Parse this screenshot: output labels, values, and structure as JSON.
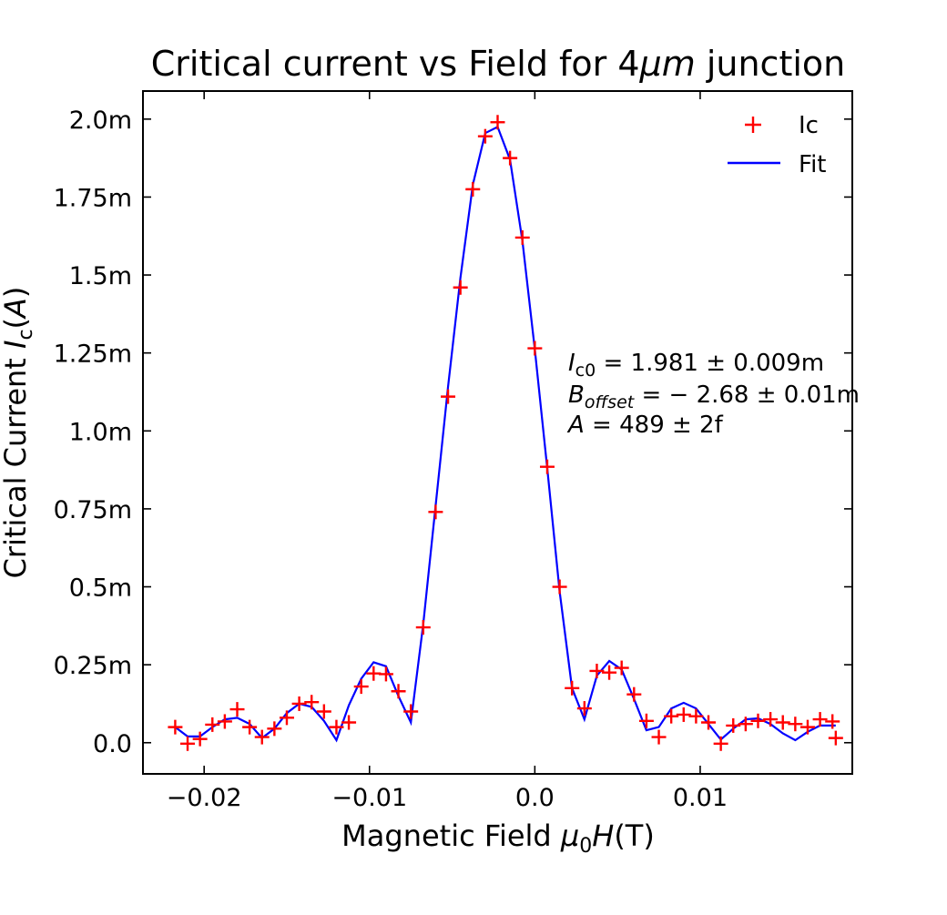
{
  "chart_data": {
    "type": "scatter",
    "title_parts": [
      "Critical current vs Field for 4",
      "μm",
      " junction"
    ],
    "xlabel_parts": [
      "Magnetic Field ",
      "μ",
      "0",
      "H",
      "(T)"
    ],
    "ylabel_parts": [
      "Critical Current ",
      "I",
      "c",
      "(",
      "A",
      ")"
    ],
    "xlim": [
      -0.0237,
      0.0192
    ],
    "ylim": [
      -0.0001,
      0.00209
    ],
    "x_ticks": [
      {
        "value": -0.02,
        "label": "−0.02"
      },
      {
        "value": -0.01,
        "label": "−0.01"
      },
      {
        "value": 0.0,
        "label": "0.0"
      },
      {
        "value": 0.01,
        "label": "0.01"
      }
    ],
    "y_ticks": [
      {
        "value": 0.0,
        "label": "0.0"
      },
      {
        "value": 0.00025,
        "label": "0.25m"
      },
      {
        "value": 0.0005,
        "label": "0.5m"
      },
      {
        "value": 0.00075,
        "label": "0.75m"
      },
      {
        "value": 0.001,
        "label": "1.0m"
      },
      {
        "value": 0.00125,
        "label": "1.25m"
      },
      {
        "value": 0.0015,
        "label": "1.5m"
      },
      {
        "value": 0.00175,
        "label": "1.75m"
      },
      {
        "value": 0.002,
        "label": "2.0m"
      }
    ],
    "legend": {
      "position": "top-right",
      "entries": [
        {
          "label": "Ic",
          "marker": "plus",
          "color": "#ff0000"
        },
        {
          "label": "Fit",
          "marker": "line",
          "color": "#0000ff"
        }
      ]
    },
    "annotation_lines": [
      [
        "I",
        "c0",
        " = 1.981 ± 0.009m"
      ],
      [
        "B",
        "offset",
        " = − 2.68 ± 0.01m"
      ],
      [
        "A",
        "",
        " = 489 ± 2f"
      ]
    ],
    "series": [
      {
        "name": "Ic",
        "kind": "scatter",
        "color": "#ff0000",
        "x": [
          -0.02175,
          -0.021,
          -0.02025,
          -0.0195,
          -0.01875,
          -0.018,
          -0.01725,
          -0.0165,
          -0.01575,
          -0.015,
          -0.01425,
          -0.0135,
          -0.01275,
          -0.012,
          -0.01125,
          -0.0105,
          -0.00975,
          -0.009,
          -0.00825,
          -0.0075,
          -0.00675,
          -0.006,
          -0.00525,
          -0.0045,
          -0.00375,
          -0.003,
          -0.00225,
          -0.0015,
          -0.00075,
          0.0,
          0.00075,
          0.0015,
          0.00225,
          0.003,
          0.00375,
          0.0045,
          0.00525,
          0.006,
          0.00675,
          0.0075,
          0.00825,
          0.009,
          0.00975,
          0.0105,
          0.01125,
          0.012,
          0.01275,
          0.0135,
          0.01425,
          0.015,
          0.01575,
          0.0165,
          0.01725,
          0.018,
          0.0182
        ],
        "y": [
          5e-05,
          -3e-06,
          1.2e-05,
          5.8e-05,
          6.8e-05,
          0.000107,
          5e-05,
          1.8e-05,
          4.5e-05,
          8e-05,
          0.000125,
          0.00013,
          0.0001,
          5e-05,
          6.5e-05,
          0.00018,
          0.000222,
          0.00022,
          0.000165,
          0.0001,
          0.00037,
          0.00074,
          0.00111,
          0.00146,
          0.001775,
          0.001945,
          0.00199,
          0.001875,
          0.00162,
          0.001265,
          0.000885,
          0.0005,
          0.000175,
          0.00011,
          0.00023,
          0.000225,
          0.00024,
          0.000155,
          7e-05,
          1.8e-05,
          8.5e-05,
          9e-05,
          8.5e-05,
          6.5e-05,
          -3e-06,
          5.5e-05,
          6e-05,
          7e-05,
          7.5e-05,
          6.5e-05,
          6e-05,
          5e-05,
          7.5e-05,
          6.8e-05,
          1.5e-05
        ]
      },
      {
        "name": "Fit",
        "kind": "line",
        "color": "#0000ff",
        "x": [
          -0.02175,
          -0.021,
          -0.02025,
          -0.0195,
          -0.01875,
          -0.018,
          -0.01725,
          -0.0165,
          -0.01575,
          -0.015,
          -0.01425,
          -0.0135,
          -0.01275,
          -0.012,
          -0.01125,
          -0.0105,
          -0.00975,
          -0.009,
          -0.00825,
          -0.0075,
          -0.00675,
          -0.006,
          -0.00525,
          -0.0045,
          -0.00375,
          -0.003,
          -0.00225,
          -0.0015,
          -0.00075,
          0.0,
          0.00075,
          0.0015,
          0.00225,
          0.003,
          0.00375,
          0.0045,
          0.00525,
          0.006,
          0.00675,
          0.0075,
          0.00825,
          0.009,
          0.00975,
          0.0105,
          0.01125,
          0.012,
          0.01275,
          0.0135,
          0.01425,
          0.015,
          0.01575,
          0.0165,
          0.01725,
          0.018,
          0.0182
        ],
        "y": [
          5e-05,
          2e-05,
          2e-05,
          5e-05,
          7.5e-05,
          8e-05,
          6e-05,
          1.5e-05,
          4.5e-05,
          9.5e-05,
          0.000125,
          0.000115,
          7e-05,
          8e-06,
          0.00012,
          0.000205,
          0.000258,
          0.000245,
          0.00015,
          6.5e-05,
          0.00038,
          0.00076,
          0.00114,
          0.00149,
          0.00179,
          0.001955,
          0.001975,
          0.00187,
          0.00161,
          0.00126,
          0.00088,
          0.000485,
          0.000175,
          7.5e-05,
          0.000215,
          0.000262,
          0.000235,
          0.00014,
          4e-05,
          5e-05,
          0.00011,
          0.000128,
          0.00011,
          6e-05,
          1e-05,
          4.5e-05,
          7.5e-05,
          7.8e-05,
          6e-05,
          3e-05,
          8e-06,
          3.5e-05,
          5.5e-05,
          5.5e-05,
          5.5e-05
        ]
      }
    ]
  }
}
